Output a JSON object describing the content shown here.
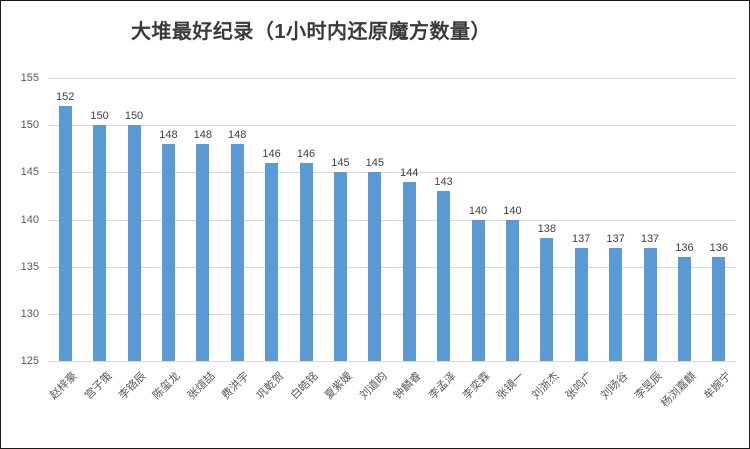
{
  "chart": {
    "title": "大堆最好纪录（1小时内还原魔方数量）"
  },
  "chart_data": {
    "type": "bar",
    "title": "大堆最好纪录（1小时内还原魔方数量）",
    "categories": [
      "赵梓豪",
      "宫子策",
      "李铬辰",
      "陈玺龙",
      "张煊喆",
      "费洪宇",
      "巩乾贺",
      "白皓铭",
      "夏紫嫒",
      "刘道昀",
      "钟麟睿",
      "李孟泽",
      "李奕霖",
      "张镜一",
      "刘浙杰",
      "张鸣广",
      "刘旸谷",
      "李昱辰",
      "杨浏嘉麒",
      "牟婉宁"
    ],
    "values": [
      152,
      150,
      150,
      148,
      148,
      148,
      146,
      146,
      145,
      145,
      144,
      143,
      140,
      140,
      138,
      137,
      137,
      137,
      136,
      136
    ],
    "xlabel": "",
    "ylabel": "",
    "ylim": [
      125,
      155
    ],
    "yticks": [
      125,
      130,
      135,
      140,
      145,
      150,
      155
    ],
    "bar_color": "#5B9BD5",
    "grid": true,
    "data_labels": true,
    "legend": "none"
  }
}
